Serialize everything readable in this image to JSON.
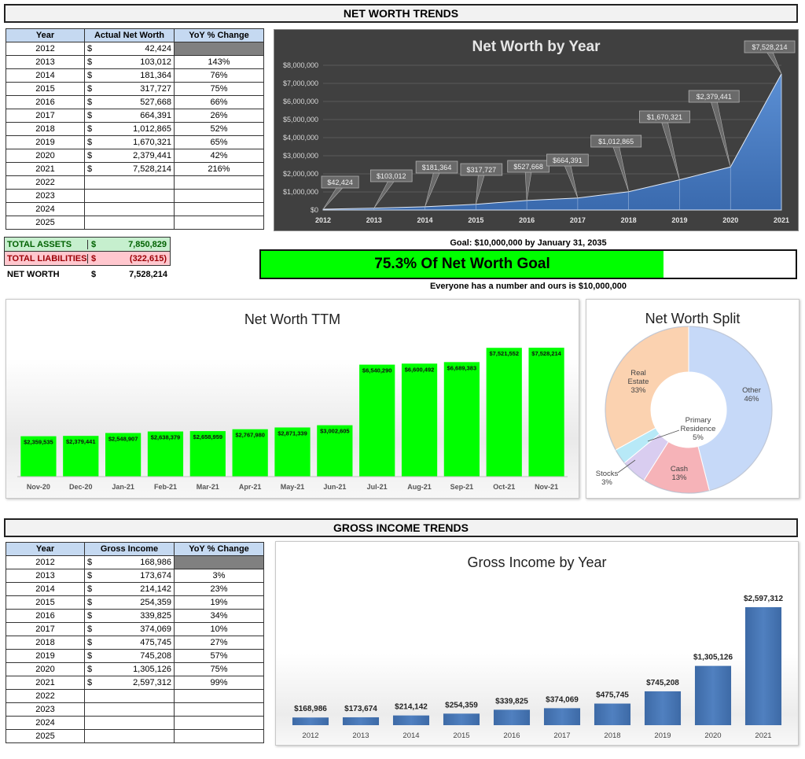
{
  "net_worth_section": {
    "title": "NET WORTH TRENDS",
    "table": {
      "headers": [
        "Year",
        "Actual Net Worth",
        "YoY % Change"
      ],
      "rows": [
        {
          "year": "2012",
          "currency": "$",
          "value": "42,424",
          "yoy": ""
        },
        {
          "year": "2013",
          "currency": "$",
          "value": "103,012",
          "yoy": "143%"
        },
        {
          "year": "2014",
          "currency": "$",
          "value": "181,364",
          "yoy": "76%"
        },
        {
          "year": "2015",
          "currency": "$",
          "value": "317,727",
          "yoy": "75%"
        },
        {
          "year": "2016",
          "currency": "$",
          "value": "527,668",
          "yoy": "66%"
        },
        {
          "year": "2017",
          "currency": "$",
          "value": "664,391",
          "yoy": "26%"
        },
        {
          "year": "2018",
          "currency": "$",
          "value": "1,012,865",
          "yoy": "52%"
        },
        {
          "year": "2019",
          "currency": "$",
          "value": "1,670,321",
          "yoy": "65%"
        },
        {
          "year": "2020",
          "currency": "$",
          "value": "2,379,441",
          "yoy": "42%"
        },
        {
          "year": "2021",
          "currency": "$",
          "value": "7,528,214",
          "yoy": "216%"
        },
        {
          "year": "2022",
          "currency": "",
          "value": "",
          "yoy": ""
        },
        {
          "year": "2023",
          "currency": "",
          "value": "",
          "yoy": ""
        },
        {
          "year": "2024",
          "currency": "",
          "value": "",
          "yoy": ""
        },
        {
          "year": "2025",
          "currency": "",
          "value": "",
          "yoy": ""
        }
      ]
    },
    "summary": {
      "total_assets_label": "TOTAL ASSETS",
      "total_assets_currency": "$",
      "total_assets_value": "7,850,829",
      "total_liabilities_label": "TOTAL LIABILITIES",
      "total_liabilities_currency": "$",
      "total_liabilities_value": "(322,615)",
      "net_worth_label": "NET WORTH",
      "net_worth_currency": "$",
      "net_worth_value": "7,528,214",
      "assets_color": "#c6efce",
      "liabilities_color": "#ffc7ce"
    },
    "goal": {
      "goal_text": "Goal: $10,000,000 by January 31, 2035",
      "progress_text": "75.3% Of Net Worth Goal",
      "progress_fraction": 0.753,
      "footnote": "Everyone has a number and ours is $10,000,000"
    }
  },
  "gross_income_section": {
    "title": "GROSS INCOME TRENDS",
    "table": {
      "headers": [
        "Year",
        "Gross Income",
        "YoY % Change"
      ],
      "rows": [
        {
          "year": "2012",
          "currency": "$",
          "value": "168,986",
          "yoy": ""
        },
        {
          "year": "2013",
          "currency": "$",
          "value": "173,674",
          "yoy": "3%"
        },
        {
          "year": "2014",
          "currency": "$",
          "value": "214,142",
          "yoy": "23%"
        },
        {
          "year": "2015",
          "currency": "$",
          "value": "254,359",
          "yoy": "19%"
        },
        {
          "year": "2016",
          "currency": "$",
          "value": "339,825",
          "yoy": "34%"
        },
        {
          "year": "2017",
          "currency": "$",
          "value": "374,069",
          "yoy": "10%"
        },
        {
          "year": "2018",
          "currency": "$",
          "value": "475,745",
          "yoy": "27%"
        },
        {
          "year": "2019",
          "currency": "$",
          "value": "745,208",
          "yoy": "57%"
        },
        {
          "year": "2020",
          "currency": "$",
          "value": "1,305,126",
          "yoy": "75%"
        },
        {
          "year": "2021",
          "currency": "$",
          "value": "2,597,312",
          "yoy": "99%"
        },
        {
          "year": "2022",
          "currency": "",
          "value": "",
          "yoy": ""
        },
        {
          "year": "2023",
          "currency": "",
          "value": "",
          "yoy": ""
        },
        {
          "year": "2024",
          "currency": "",
          "value": "",
          "yoy": ""
        },
        {
          "year": "2025",
          "currency": "",
          "value": "",
          "yoy": ""
        }
      ]
    }
  },
  "chart_data": [
    {
      "id": "net_worth_by_year",
      "type": "area",
      "title": "Net Worth by Year",
      "x": [
        "2012",
        "2013",
        "2014",
        "2015",
        "2016",
        "2017",
        "2018",
        "2019",
        "2020",
        "2021"
      ],
      "values": [
        42424,
        103012,
        181364,
        317727,
        527668,
        664391,
        1012865,
        1670321,
        2379441,
        7528214
      ],
      "data_labels": [
        "$42,424",
        "$103,012",
        "$181,364",
        "$317,727",
        "$527,668",
        "$664,391",
        "$1,012,865",
        "$1,670,321",
        "$2,379,441",
        "$7,528,214"
      ],
      "y_ticks": [
        "$0",
        "$1,000,000",
        "$2,000,000",
        "$3,000,000",
        "$4,000,000",
        "$5,000,000",
        "$6,000,000",
        "$7,000,000",
        "$8,000,000"
      ],
      "ylim": [
        0,
        8000000
      ],
      "background": "#404040",
      "fill_color": "#4f81bd"
    },
    {
      "id": "net_worth_ttm",
      "type": "bar",
      "title": "Net Worth TTM",
      "categories": [
        "Nov-20",
        "Dec-20",
        "Jan-21",
        "Feb-21",
        "Mar-21",
        "Apr-21",
        "May-21",
        "Jun-21",
        "Jul-21",
        "Aug-21",
        "Sep-21",
        "Oct-21",
        "Nov-21"
      ],
      "values": [
        2359535,
        2379441,
        2548907,
        2638379,
        2658959,
        2767980,
        2871339,
        3002605,
        6540290,
        6600492,
        6689383,
        7521552,
        7528214
      ],
      "data_labels": [
        "$2,359,535",
        "$2,379,441",
        "$2,548,907",
        "$2,638,379",
        "$2,658,959",
        "$2,767,980",
        "$2,871,339",
        "$3,002,605",
        "$6,540,290",
        "$6,600,492",
        "$6,689,383",
        "$7,521,552",
        "$7,528,214"
      ],
      "ylim": [
        0,
        8000000
      ],
      "bar_color": "#00ff00"
    },
    {
      "id": "net_worth_split",
      "type": "pie",
      "title": "Net Worth Split",
      "slices": [
        {
          "name": "Other",
          "percent_label": "46%",
          "value": 46,
          "color": "#c6d9f8"
        },
        {
          "name": "Cash",
          "percent_label": "13%",
          "value": 13,
          "color": "#f6b3b8"
        },
        {
          "name": "Primary Residence",
          "percent_label": "5%",
          "value": 5,
          "color": "#d9cdf0"
        },
        {
          "name": "Stocks",
          "percent_label": "3%",
          "value": 3,
          "color": "#b7e9f7"
        },
        {
          "name": "Real Estate",
          "percent_label": "33%",
          "value": 33,
          "color": "#fbd2b0"
        }
      ]
    },
    {
      "id": "gross_income_by_year",
      "type": "bar",
      "title": "Gross Income by Year",
      "categories": [
        "2012",
        "2013",
        "2014",
        "2015",
        "2016",
        "2017",
        "2018",
        "2019",
        "2020",
        "2021"
      ],
      "values": [
        168986,
        173674,
        214142,
        254359,
        339825,
        374069,
        475745,
        745208,
        1305126,
        2597312
      ],
      "data_labels": [
        "$168,986",
        "$173,674",
        "$214,142",
        "$254,359",
        "$339,825",
        "$374,069",
        "$475,745",
        "$745,208",
        "$1,305,126",
        "$2,597,312"
      ],
      "ylim": [
        0,
        2700000
      ],
      "bar_color": "#4f81bd"
    }
  ]
}
